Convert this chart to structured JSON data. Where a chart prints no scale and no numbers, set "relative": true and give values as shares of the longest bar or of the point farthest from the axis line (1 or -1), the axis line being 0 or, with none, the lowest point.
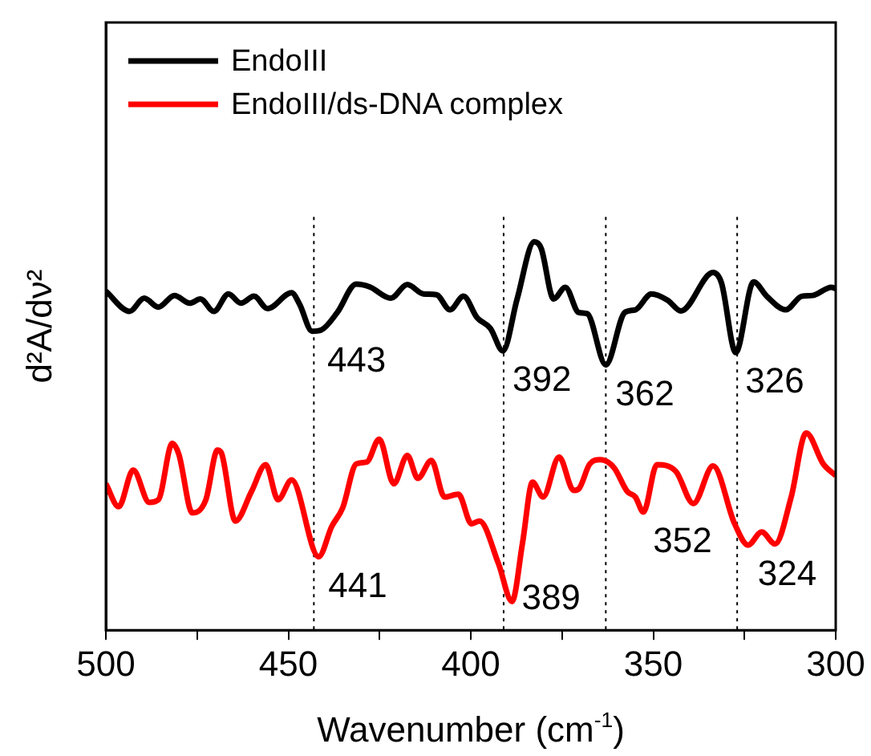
{
  "chart_data": {
    "type": "line",
    "relative": true,
    "xlabel": "Wavenumber (cm$^{-1}$)",
    "ylabel": "d²A/dν²",
    "xlim": [
      500,
      300
    ],
    "xticks": [
      500,
      {
        "value": 475,
        "label": null
      },
      450,
      {
        "value": 425,
        "label": null
      },
      400,
      {
        "value": 375,
        "label": null
      },
      350,
      {
        "value": 325,
        "label": null
      },
      300
    ],
    "legend": "top left",
    "marker": "none",
    "line_style": "solid",
    "series": [
      {
        "name": "EndoIII",
        "color": "#000000",
        "x": [
          500,
          493.5,
          489.5,
          485.6,
          481.2,
          477.0,
          474.1,
          470.4,
          466.4,
          463.0,
          459.4,
          455.7,
          449.1,
          446.9,
          443.5,
          441.0,
          436.6,
          431.4,
          427.7,
          421.9,
          417.4,
          413.0,
          409.4,
          405.7,
          402.0,
          398.3,
          394.6,
          391.2,
          387.3,
          382.6,
          380.7,
          377.3,
          374.1,
          370.4,
          368.1,
          363.0,
          357.8,
          354.9,
          350.5,
          346.1,
          342.4,
          333.6,
          331.3,
          327.4,
          322.5,
          318.9,
          313.7,
          309.3,
          306.3,
          301.2,
          300
        ],
        "values": [
          0.873,
          0.821,
          0.855,
          0.832,
          0.862,
          0.842,
          0.853,
          0.821,
          0.866,
          0.842,
          0.86,
          0.828,
          0.869,
          0.839,
          0.77,
          0.773,
          0.818,
          0.891,
          0.884,
          0.855,
          0.89,
          0.866,
          0.864,
          0.825,
          0.86,
          0.805,
          0.777,
          0.719,
          0.853,
          1,
          0.983,
          0.853,
          0.883,
          0.818,
          0.815,
          0.683,
          0.818,
          0.825,
          0.866,
          0.85,
          0.822,
          0.921,
          0.894,
          0.715,
          0.897,
          0.86,
          0.825,
          0.86,
          0.862,
          0.883,
          0.88
        ]
      },
      {
        "name": "EndoIII/ds-DNA complex",
        "color": "#ff0000",
        "x": [
          500,
          496.5,
          492.5,
          488.1,
          485.6,
          481.8,
          480.0,
          476.3,
          472.6,
          469.4,
          468.2,
          464.5,
          460.1,
          456.2,
          452.8,
          449.1,
          441.7,
          438.1,
          435.1,
          431.4,
          428.5,
          425.1,
          421.1,
          417.4,
          414.5,
          410.8,
          407.2,
          403.4,
          399.8,
          397.6,
          392.4,
          388.7,
          385.8,
          383.1,
          380.2,
          375.8,
          371.8,
          370.4,
          367.4,
          364.5,
          360.8,
          357.1,
          354.9,
          352.7,
          349.0,
          343.8,
          339.0,
          333.6,
          327.7,
          324.0,
          320.3,
          316.6,
          312.2,
          308.1,
          303.4,
          300
        ],
        "values": [
          0.377,
          0.318,
          0.412,
          0.329,
          0.336,
          0.481,
          0.453,
          0.302,
          0.336,
          0.464,
          0.453,
          0.281,
          0.357,
          0.426,
          0.336,
          0.387,
          0.189,
          0.267,
          0.315,
          0.428,
          0.433,
          0.492,
          0.377,
          0.45,
          0.391,
          0.437,
          0.343,
          0.35,
          0.274,
          0.281,
          0.171,
          0.074,
          0.226,
          0.381,
          0.343,
          0.446,
          0.36,
          0.364,
          0.428,
          0.439,
          0.419,
          0.357,
          0.343,
          0.304,
          0.426,
          0.409,
          0.326,
          0.423,
          0.274,
          0.219,
          0.253,
          0.222,
          0.343,
          0.508,
          0.428,
          0.398
        ]
      }
    ],
    "ref_lines": [
      {
        "axis": "x",
        "value": 443,
        "color": "#000000",
        "line_style": "dotted"
      },
      {
        "axis": "x",
        "value": 391,
        "color": "#000000",
        "line_style": "dotted"
      },
      {
        "axis": "x",
        "value": 363,
        "color": "#000000",
        "line_style": "dotted"
      },
      {
        "axis": "x",
        "value": 327,
        "color": "#000000",
        "line_style": "dotted"
      }
    ],
    "annotations": [
      {
        "text": "443",
        "x": 442,
        "y": 0.77
      },
      {
        "text": "392",
        "x": 391.2,
        "y": 0.719
      },
      {
        "text": "362",
        "x": 363,
        "y": 0.683
      },
      {
        "text": "326",
        "x": 327.4,
        "y": 0.715
      },
      {
        "text": "441",
        "x": 441.7,
        "y": 0.189
      },
      {
        "text": "389",
        "x": 388.7,
        "y": 0.074
      },
      {
        "text": "352",
        "x": 352.7,
        "y": 0.304
      },
      {
        "text": "324",
        "x": 324,
        "y": 0.219
      }
    ]
  }
}
